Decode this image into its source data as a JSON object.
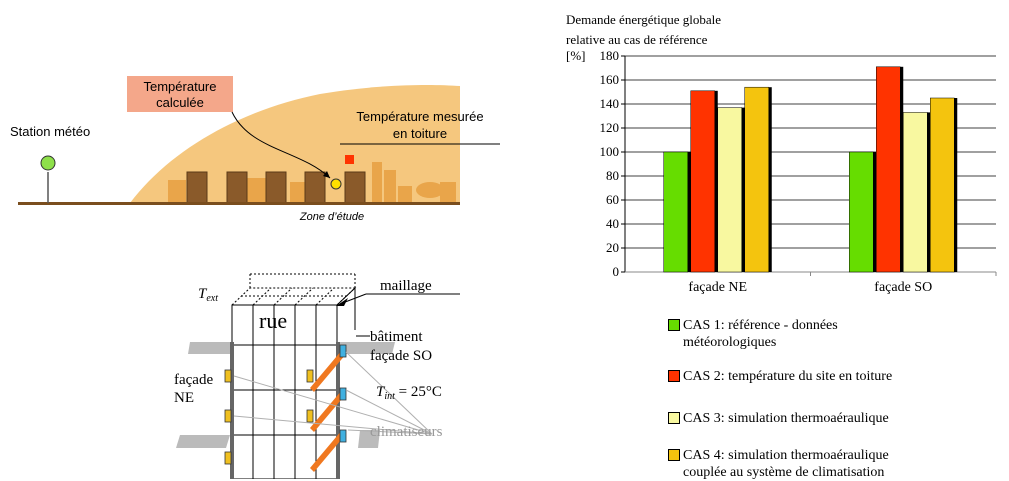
{
  "top_left_diagram": {
    "station_label": "Station météo",
    "computed_temp_label": "Température calculée",
    "measured_temp_label": "Température mesurée en toiture",
    "zone_label": "Zone d’étude"
  },
  "bottom_left_diagram": {
    "t_ext_label": "T",
    "t_ext_sub": "ext",
    "maillage_label": "maillage",
    "rue_label": "rue",
    "batiment_label": "bâtiment façade SO",
    "facade_ne_label": "façade NE",
    "t_int_label": "T",
    "t_int_sub": "int",
    "t_int_value": " = 25°C",
    "climatiseurs_label": "climatiseurs"
  },
  "chart_data": {
    "type": "bar",
    "title": "Demande énergétique globale relative au cas de référence",
    "title_lines": [
      "Demande énergétique globale",
      "relative au cas de référence"
    ],
    "yunit": "[%]",
    "categories": [
      "façade NE",
      "façade SO"
    ],
    "ylim": [
      0,
      180
    ],
    "yticks": [
      0,
      20,
      40,
      60,
      80,
      100,
      120,
      140,
      160,
      180
    ],
    "grid": true,
    "legend_position": "bottom",
    "series": [
      {
        "name": "CAS 1: référence - données météorologiques",
        "color": "#66dd00",
        "values": [
          100,
          100
        ]
      },
      {
        "name": "CAS 2: température du site en toiture",
        "color": "#ff3300",
        "values": [
          151,
          171
        ]
      },
      {
        "name": "CAS 3: simulation thermoaéraulique",
        "color": "#f8f8a0",
        "values": [
          137,
          133
        ]
      },
      {
        "name": "CAS 4: simulation thermoaéraulique couplée au système de climatisation",
        "color": "#f4c40e",
        "values": [
          154,
          145
        ]
      }
    ]
  }
}
